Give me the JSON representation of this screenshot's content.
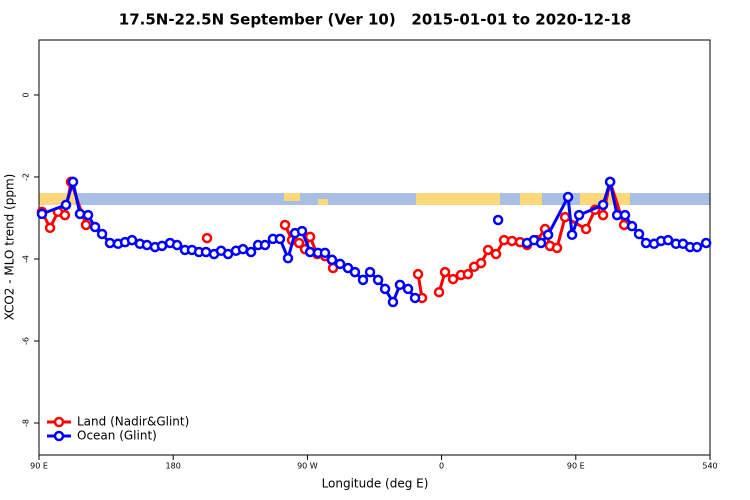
{
  "chart_data": {
    "type": "line",
    "title": "17.5N-22.5N September (Ver 10)   2015-01-01 to 2020-12-18",
    "xlabel": "Longitude (deg E)",
    "ylabel": "XCO2 - MLO trend (ppm)",
    "xlim": [
      90,
      540
    ],
    "ylim": [
      -8.78,
      1.34
    ],
    "xticks": [
      {
        "value": 90,
        "label": "90 E"
      },
      180,
      {
        "value": 270,
        "label": "90 W"
      },
      {
        "value": 360,
        "label": "0"
      },
      {
        "value": 450,
        "label": "90 E"
      },
      540
    ],
    "yticks": [
      0,
      -2,
      -4,
      -6,
      -8
    ],
    "legend": "bottom-left",
    "series": [
      {
        "name": "Land (Nadir&Glint)",
        "color": "#ff0000",
        "x": [
          92.0,
          97.4,
          102.7,
          107.4,
          111.5,
          121.5,
          null,
          202.7,
          null,
          255.0,
          259.7,
          264.4,
          268.4,
          271.8,
          276.5,
          281.8,
          287.2,
          null,
          344.2,
          346.9,
          null,
          358.3,
          362.3,
          367.7,
          373.0,
          377.7,
          381.8,
          386.5,
          391.2,
          396.5,
          401.9,
          407.2,
          412.6,
          417.3,
          424.0,
          429.4,
          432.7,
          437.4,
          442.8,
          456.9,
          462.9,
          468.3,
          473.0,
          482.4
        ],
        "values": [
          -2.85,
          -3.24,
          -2.85,
          -2.93,
          -2.12,
          -3.17,
          null,
          -3.49,
          null,
          -3.17,
          -3.54,
          -3.61,
          -3.76,
          -3.46,
          -3.88,
          -3.93,
          -4.22,
          null,
          -4.37,
          -4.95,
          null,
          -4.81,
          -4.32,
          -4.49,
          -4.39,
          -4.37,
          -4.19,
          -4.1,
          -3.78,
          -3.88,
          -3.54,
          -3.56,
          -3.59,
          -3.66,
          -3.54,
          -3.27,
          -3.68,
          -3.73,
          -2.98,
          -3.27,
          -2.8,
          -2.93,
          -2.12,
          -3.17
        ]
      },
      {
        "name": "Ocean (Glint)",
        "color": "#0000ff",
        "x": [
          92.0,
          108.1,
          112.8,
          117.5,
          122.9,
          127.6,
          132.3,
          137.6,
          143.0,
          147.7,
          152.4,
          157.7,
          162.4,
          167.8,
          172.5,
          177.9,
          182.6,
          187.9,
          192.6,
          197.3,
          202.0,
          207.4,
          212.1,
          216.8,
          222.1,
          226.8,
          232.2,
          236.9,
          241.6,
          246.9,
          251.6,
          257.0,
          261.7,
          266.4,
          271.8,
          277.1,
          281.8,
          286.5,
          291.9,
          297.2,
          301.9,
          307.3,
          312.0,
          317.4,
          322.1,
          327.4,
          332.1,
          337.5,
          342.2,
          null,
          397.9,
          null,
          417.3,
          422.0,
          426.7,
          431.4,
          444.8,
          447.5,
          452.2,
          468.3,
          473.0,
          477.7,
          483.0,
          487.7,
          492.4,
          497.1,
          502.5,
          507.2,
          511.9,
          517.2,
          521.9,
          526.6,
          531.3,
          537.4
        ],
        "values": [
          -2.9,
          -2.68,
          -2.12,
          -2.9,
          -2.93,
          -3.22,
          -3.39,
          -3.61,
          -3.63,
          -3.59,
          -3.54,
          -3.63,
          -3.66,
          -3.71,
          -3.68,
          -3.61,
          -3.66,
          -3.78,
          -3.78,
          -3.83,
          -3.83,
          -3.88,
          -3.8,
          -3.88,
          -3.8,
          -3.76,
          -3.83,
          -3.66,
          -3.66,
          -3.51,
          -3.51,
          -3.98,
          -3.37,
          -3.32,
          -3.83,
          -3.85,
          -3.85,
          -4.02,
          -4.12,
          -4.22,
          -4.32,
          -4.51,
          -4.32,
          -4.51,
          -4.73,
          -5.05,
          -4.63,
          -4.73,
          -4.95,
          null,
          -3.05,
          null,
          -3.61,
          -3.54,
          -3.61,
          -3.41,
          -2.49,
          -3.41,
          -2.93,
          -2.68,
          -2.12,
          -2.93,
          -2.93,
          -3.2,
          -3.39,
          -3.61,
          -3.63,
          -3.56,
          -3.54,
          -3.63,
          -3.63,
          -3.71,
          -3.71,
          -3.61
        ]
      }
    ]
  }
}
